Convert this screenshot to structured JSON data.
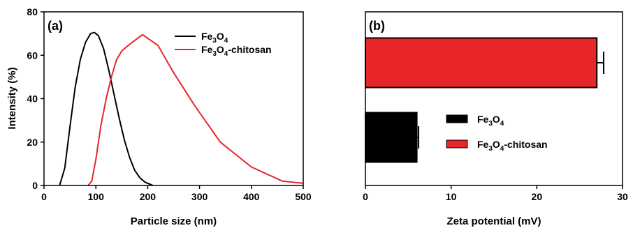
{
  "chart_data": [
    {
      "type": "line",
      "panel_label": "(a)",
      "xlabel": "Particle size (nm)",
      "ylabel": "Intensity (%)",
      "xlim": [
        0,
        500
      ],
      "ylim": [
        0,
        80
      ],
      "xticks": [
        0,
        100,
        200,
        300,
        400,
        500
      ],
      "yticks": [
        0,
        20,
        40,
        60,
        80
      ],
      "legend_position": "top-right",
      "series": [
        {
          "name": "Fe3O4",
          "name_parts": {
            "a": "Fe",
            "b": "3",
            "c": "O",
            "d": "4",
            "e": ""
          },
          "color": "#000000",
          "x": [
            30,
            40,
            50,
            60,
            70,
            80,
            90,
            97,
            105,
            115,
            125,
            135,
            145,
            155,
            165,
            175,
            185,
            195,
            205,
            210
          ],
          "y": [
            0,
            8,
            27,
            45,
            58,
            66,
            70,
            70.5,
            69,
            63,
            53,
            42,
            31,
            21,
            13,
            7,
            3.5,
            1.5,
            0.5,
            0
          ]
        },
        {
          "name": "Fe3O4-chitosan",
          "name_parts": {
            "a": "Fe",
            "b": "3",
            "c": "O",
            "d": "4",
            "e": "-chitosan"
          },
          "color": "#e8262a",
          "x": [
            85,
            92,
            100,
            110,
            120,
            130,
            140,
            150,
            165,
            190,
            220,
            250,
            290,
            340,
            400,
            460,
            500
          ],
          "y": [
            0,
            2,
            12,
            28,
            40,
            50,
            58,
            62,
            65,
            69.5,
            64.5,
            52,
            37,
            20,
            8.5,
            2,
            1
          ]
        }
      ]
    },
    {
      "type": "bar",
      "orientation": "horizontal",
      "panel_label": "(b)",
      "xlabel": "Zeta potential (mV)",
      "ylabel": "",
      "xlim": [
        0,
        30
      ],
      "xticks": [
        0,
        10,
        20,
        30
      ],
      "legend_position": "center-right",
      "categories": [
        "Fe3O4-chitosan",
        "Fe3O4"
      ],
      "values": [
        27,
        6
      ],
      "errors": [
        0.8,
        0.2
      ],
      "colors": [
        "#e8262a",
        "#000000"
      ],
      "legend": [
        {
          "name": "Fe3O4",
          "name_parts": {
            "a": "Fe",
            "b": "3",
            "c": "O",
            "d": "4",
            "e": ""
          },
          "color": "#000000"
        },
        {
          "name": "Fe3O4-chitosan",
          "name_parts": {
            "a": "Fe",
            "b": "3",
            "c": "O",
            "d": "4",
            "e": "-chitosan"
          },
          "color": "#e8262a"
        }
      ]
    }
  ]
}
